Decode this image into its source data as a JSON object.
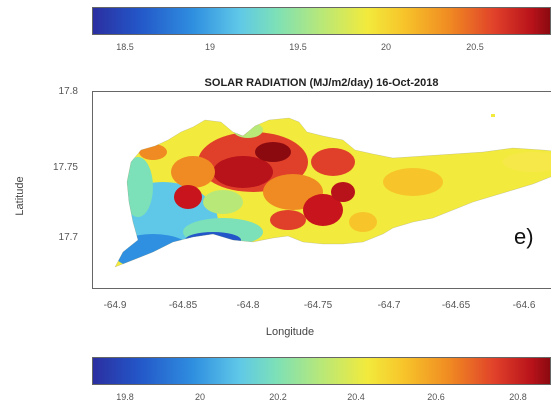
{
  "top_colorbar": {
    "ticks": [
      "18.5",
      "19",
      "19.5",
      "20",
      "20.5"
    ]
  },
  "map": {
    "title": "SOLAR RADIATION (MJ/m2/day) 16-Oct-2018",
    "ylabel": "Latitude",
    "xlabel": "Longitude",
    "yticks": [
      "17.8",
      "17.75",
      "17.7"
    ],
    "xticks": [
      "-64.9",
      "-64.85",
      "-64.8",
      "-64.75",
      "-64.7",
      "-64.65",
      "-64.6"
    ],
    "panel_label": "e)"
  },
  "bottom_colorbar": {
    "ticks": [
      "19.8",
      "20",
      "20.2",
      "20.4",
      "20.6",
      "20.8"
    ]
  },
  "colors": {
    "island_base": "#f2ea3c",
    "hot": "#c8141c",
    "warm": "#f08a22",
    "cool": "#5fc8e8",
    "mid": "#7ce0b8",
    "cold": "#2356c8"
  }
}
